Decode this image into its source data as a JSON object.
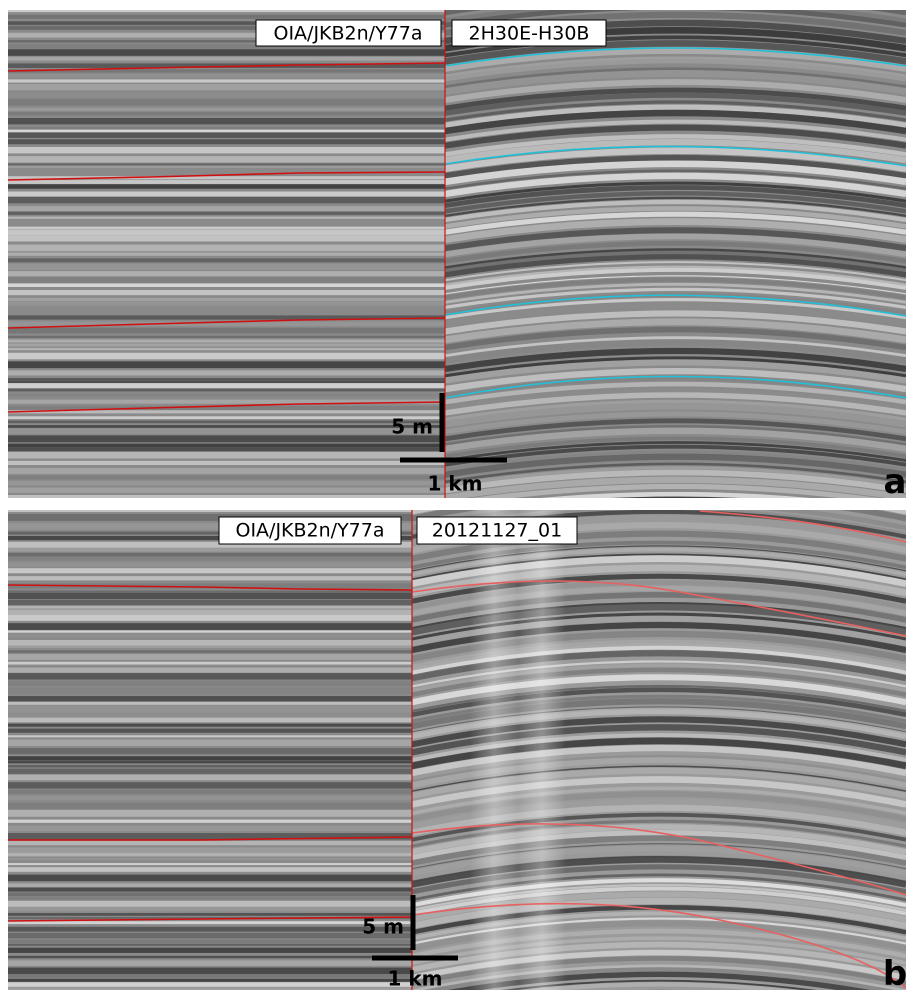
{
  "panels": [
    {
      "label": "a",
      "left_tag": "OIA/JKB2n/Y77a",
      "right_tag": "2H30E-H30B",
      "vertical_scale": "5 m",
      "horizontal_scale": "1 km"
    },
    {
      "label": "b",
      "left_tag": "OIA/JKB2n/Y77a",
      "right_tag": "20121127_01",
      "vertical_scale": "5 m",
      "horizontal_scale": "1 km"
    }
  ]
}
